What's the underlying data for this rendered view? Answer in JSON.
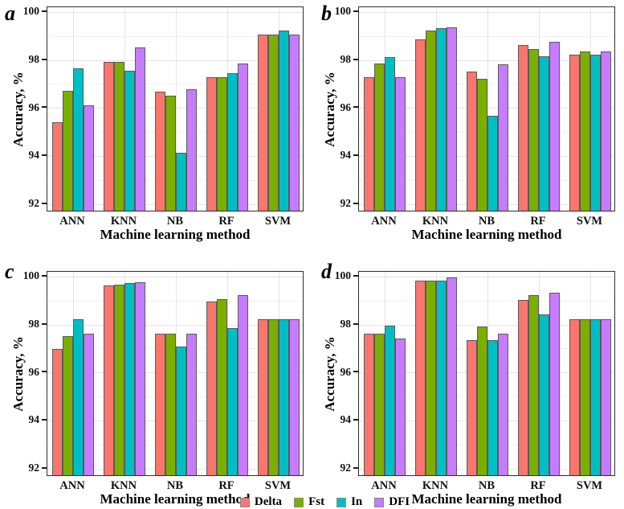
{
  "figure": {
    "background": "#ffffff",
    "legend": {
      "items": [
        {
          "label": "Delta",
          "color": "#F8766D"
        },
        {
          "label": "Fst",
          "color": "#7CAE00"
        },
        {
          "label": "In",
          "color": "#00BFC4"
        },
        {
          "label": "DFI",
          "color": "#C77CFF"
        }
      ]
    }
  },
  "chart_data": [
    {
      "type": "bar",
      "panel_label": "a",
      "xlabel": "Machine learning method",
      "ylabel": "Accuracy, %",
      "ylim": [
        91.65,
        100.2
      ],
      "y_ticks": [
        100,
        98,
        96,
        94,
        92
      ],
      "y_minor_ticks": [
        99,
        97,
        95,
        93
      ],
      "grid": "major+minor horizontal, major vertical at category centers",
      "legend_position": "bottom-shared",
      "categories": [
        "ANN",
        "KNN",
        "NB",
        "RF",
        "SVM"
      ],
      "series": [
        {
          "name": "Delta",
          "color": "#F8766D",
          "values": [
            95.35,
            97.85,
            96.6,
            97.2,
            99.0
          ]
        },
        {
          "name": "Fst",
          "color": "#7CAE00",
          "values": [
            96.65,
            97.85,
            96.45,
            97.2,
            99.0
          ]
        },
        {
          "name": "In",
          "color": "#00BFC4",
          "values": [
            97.6,
            97.5,
            94.05,
            97.4,
            99.15
          ]
        },
        {
          "name": "DFI",
          "color": "#C77CFF",
          "values": [
            96.05,
            98.45,
            96.7,
            97.8,
            99.0
          ]
        }
      ]
    },
    {
      "type": "bar",
      "panel_label": "b",
      "xlabel": "Machine learning method",
      "ylabel": "Accuracy, %",
      "ylim": [
        91.65,
        100.2
      ],
      "y_ticks": [
        100,
        98,
        96,
        94,
        92
      ],
      "y_minor_ticks": [
        99,
        97,
        95,
        93
      ],
      "grid": "major+minor horizontal, major vertical at category centers",
      "legend_position": "bottom-shared",
      "categories": [
        "ANN",
        "KNN",
        "NB",
        "RF",
        "SVM"
      ],
      "series": [
        {
          "name": "Delta",
          "color": "#F8766D",
          "values": [
            97.2,
            98.8,
            97.45,
            98.55,
            98.15
          ]
        },
        {
          "name": "Fst",
          "color": "#7CAE00",
          "values": [
            97.8,
            99.15,
            97.15,
            98.4,
            98.3
          ]
        },
        {
          "name": "In",
          "color": "#00BFC4",
          "values": [
            98.05,
            99.25,
            95.6,
            98.1,
            98.15
          ]
        },
        {
          "name": "DFI",
          "color": "#C77CFF",
          "values": [
            97.2,
            99.3,
            97.75,
            98.7,
            98.3
          ]
        }
      ]
    },
    {
      "type": "bar",
      "panel_label": "c",
      "xlabel": "Machine learning method",
      "ylabel": "Accuracy, %",
      "ylim": [
        91.65,
        100.2
      ],
      "y_ticks": [
        100,
        98,
        96,
        94,
        92
      ],
      "y_minor_ticks": [
        99,
        97,
        95,
        93
      ],
      "grid": "major+minor horizontal, major vertical at category centers",
      "legend_position": "bottom-shared",
      "categories": [
        "ANN",
        "KNN",
        "NB",
        "RF",
        "SVM"
      ],
      "series": [
        {
          "name": "Delta",
          "color": "#F8766D",
          "values": [
            96.9,
            99.55,
            97.55,
            98.9,
            98.15
          ]
        },
        {
          "name": "Fst",
          "color": "#7CAE00",
          "values": [
            97.45,
            99.6,
            97.55,
            99.0,
            98.15
          ]
        },
        {
          "name": "In",
          "color": "#00BFC4",
          "values": [
            98.15,
            99.65,
            97.0,
            97.8,
            98.15
          ]
        },
        {
          "name": "DFI",
          "color": "#C77CFF",
          "values": [
            97.55,
            99.7,
            97.55,
            99.15,
            98.15
          ]
        }
      ]
    },
    {
      "type": "bar",
      "panel_label": "d",
      "xlabel": "Machine learning method",
      "ylabel": "Accuracy, %",
      "ylim": [
        91.65,
        100.2
      ],
      "y_ticks": [
        100,
        98,
        96,
        94,
        92
      ],
      "y_minor_ticks": [
        99,
        97,
        95,
        93
      ],
      "grid": "major+minor horizontal, major vertical at category centers",
      "legend_position": "bottom-shared",
      "categories": [
        "ANN",
        "KNN",
        "NB",
        "RF",
        "SVM"
      ],
      "series": [
        {
          "name": "Delta",
          "color": "#F8766D",
          "values": [
            97.55,
            99.75,
            97.3,
            98.95,
            98.15
          ]
        },
        {
          "name": "Fst",
          "color": "#7CAE00",
          "values": [
            97.55,
            99.75,
            97.85,
            99.15,
            98.15
          ]
        },
        {
          "name": "In",
          "color": "#00BFC4",
          "values": [
            97.9,
            99.75,
            97.3,
            98.35,
            98.15
          ]
        },
        {
          "name": "DFI",
          "color": "#C77CFF",
          "values": [
            97.35,
            99.9,
            97.55,
            99.25,
            98.15
          ]
        }
      ]
    }
  ]
}
